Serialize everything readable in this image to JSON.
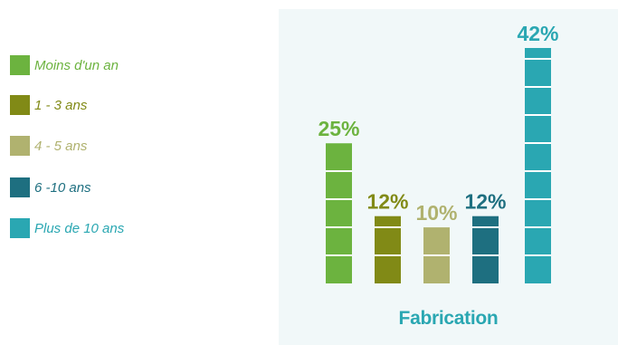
{
  "colors": {
    "moins_un_an": "#6cb33f",
    "un_trois": "#818a16",
    "quatre_cinq": "#b0b26f",
    "six_dix": "#1e6f80",
    "plus_dix": "#2aa7b2",
    "panel_bg": "#f1f8f9",
    "title": "#2aa7b2"
  },
  "legend": [
    {
      "label": "Moins d'un an",
      "color": "#6cb33f",
      "text_color": "#6cb33f"
    },
    {
      "label": "1 - 3 ans",
      "color": "#818a16",
      "text_color": "#818a16"
    },
    {
      "label": "4 - 5 ans",
      "color": "#b0b26f",
      "text_color": "#b0b26f"
    },
    {
      "label": "6 -10 ans",
      "color": "#1e6f80",
      "text_color": "#1e6f80"
    },
    {
      "label": "Plus de 10 ans",
      "color": "#2aa7b2",
      "text_color": "#2aa7b2"
    }
  ],
  "chart_data": {
    "type": "bar",
    "title": "Fabrication",
    "categories": [
      "Moins d'un an",
      "1 - 3 ans",
      "4 - 5 ans",
      "6 -10 ans",
      "Plus de 10 ans"
    ],
    "values": [
      25,
      12,
      10,
      12,
      42
    ],
    "value_labels": [
      "25%",
      "12%",
      "10%",
      "12%",
      "42%"
    ],
    "colors": [
      "#6cb33f",
      "#818a16",
      "#b0b26f",
      "#1e6f80",
      "#2aa7b2"
    ],
    "ylim": [
      0,
      42
    ],
    "grid": false,
    "legend_position": "left"
  }
}
